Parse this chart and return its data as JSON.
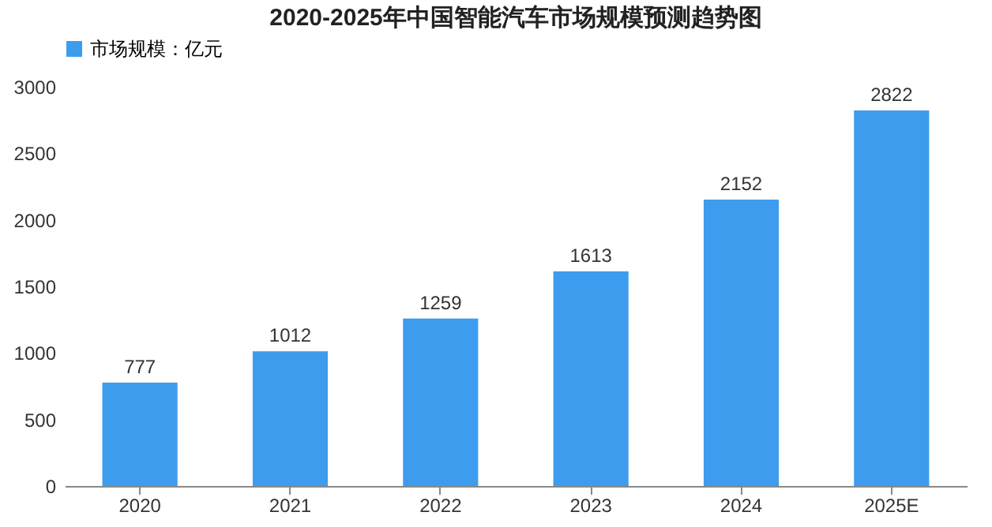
{
  "chart_data": {
    "type": "bar",
    "title": "2020-2025年中国智能汽车市场规模预测趋势图",
    "categories": [
      "2020",
      "2021",
      "2022",
      "2023",
      "2024",
      "2025E"
    ],
    "series": [
      {
        "name": "市场规模：亿元",
        "color": "#3d9ced",
        "values": [
          777,
          1012,
          1259,
          1613,
          2152,
          2822
        ]
      }
    ],
    "ylim": [
      0,
      3000
    ],
    "yticks": [
      0,
      500,
      1000,
      1500,
      2000,
      2500,
      3000
    ],
    "grid": false,
    "legend": "top",
    "data_labels": true
  }
}
